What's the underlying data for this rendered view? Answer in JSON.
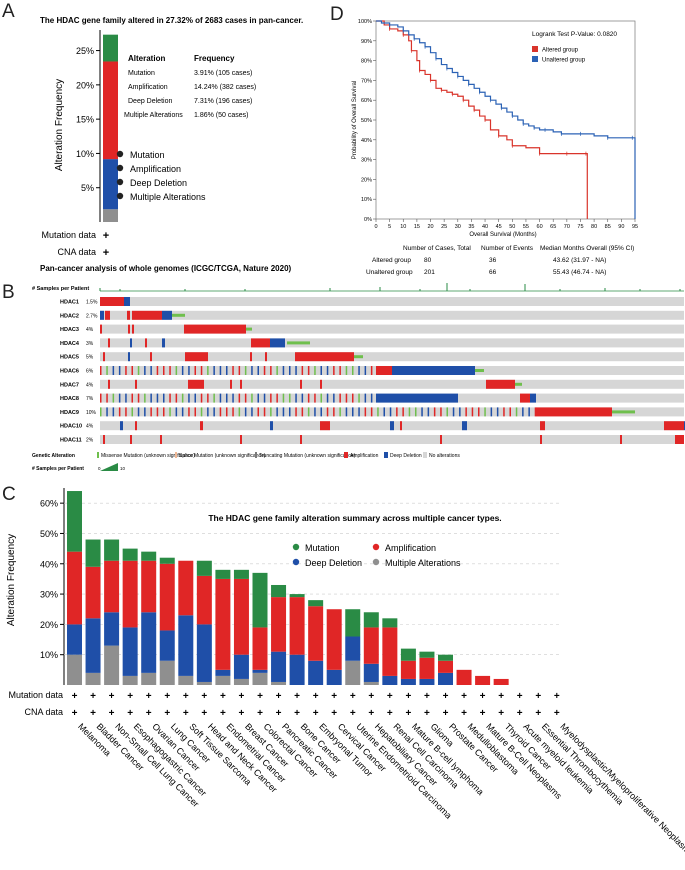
{
  "colors": {
    "mutation": "#2a8b45",
    "amplification": "#e02626",
    "deep_deletion": "#1f4fa8",
    "multiple": "#8f8f8f",
    "altered": "#d9342b",
    "unaltered": "#2b62b5",
    "splice": "#f0b895",
    "truncating": "#7a7a7a",
    "no_alteration": "#d6d6d6",
    "missense": "#6fbf4d"
  },
  "panel_labels": {
    "a": "A",
    "b": "B",
    "c": "C",
    "d": "D"
  },
  "chart_data": [
    {
      "id": "A",
      "type": "bar",
      "title": "The HDAC gene family altered in 27.32% of 2683 cases in pan-cancer.",
      "ylabel": "Alteration Frequency",
      "ylim": [
        0,
        28
      ],
      "yticks": [
        "5%",
        "10%",
        "15%",
        "20%",
        "25%"
      ],
      "ytick_values": [
        5,
        10,
        15,
        20,
        25
      ],
      "segments": [
        {
          "name": "Multiple Alterations",
          "value": 1.86
        },
        {
          "name": "Deep Deletion",
          "value": 7.31
        },
        {
          "name": "Amplification",
          "value": 14.24
        },
        {
          "name": "Mutation",
          "value": 3.91
        }
      ],
      "table_headers": [
        "Alteration",
        "Frequency"
      ],
      "table_rows": [
        [
          "Mutation",
          "3.91% (105 cases)"
        ],
        [
          "Amplification",
          "14.24% (382 cases)"
        ],
        [
          "Deep Deletion",
          "7.31% (196 cases)"
        ],
        [
          "Multiple Alterations",
          "1.86% (50 cases)"
        ]
      ],
      "legend": [
        "Mutation",
        "Amplification",
        "Deep Deletion",
        "Multiple Alterations"
      ],
      "row_labels": [
        "Mutation data",
        "CNA data"
      ],
      "plus": "+",
      "footnote": "Pan-cancer analysis of whole genomes (ICGC/TCGA, Nature 2020)"
    },
    {
      "id": "D",
      "type": "line",
      "title": "Logrank Test P-Value: 0.0820",
      "xlabel": "Overall Survival (Months)",
      "ylabel": "Probability of Overall Survival",
      "xlim": [
        0,
        95
      ],
      "ylim": [
        0,
        100
      ],
      "xticks": [
        "0",
        "5",
        "10",
        "15",
        "20",
        "25",
        "30",
        "35",
        "40",
        "45",
        "50",
        "55",
        "60",
        "65",
        "70",
        "75",
        "80",
        "85",
        "90",
        "95"
      ],
      "xtick_values": [
        0,
        5,
        10,
        15,
        20,
        25,
        30,
        35,
        40,
        45,
        50,
        55,
        60,
        65,
        70,
        75,
        80,
        85,
        90,
        95
      ],
      "yticks": [
        "0%",
        "10%",
        "20%",
        "30%",
        "40%",
        "50%",
        "60%",
        "70%",
        "80%",
        "90%",
        "100%"
      ],
      "ytick_values": [
        0,
        10,
        20,
        30,
        40,
        50,
        60,
        70,
        80,
        90,
        100
      ],
      "legend": [
        "Altered group",
        "Unaltered group"
      ],
      "series": [
        {
          "name": "Altered group",
          "x": [
            0,
            3,
            5,
            8,
            10,
            12,
            13,
            15,
            16,
            18,
            20,
            22,
            24,
            26,
            28,
            30,
            32,
            34,
            36,
            38,
            40,
            42,
            45,
            48,
            50,
            55,
            60,
            65,
            70,
            75,
            77,
            77.5
          ],
          "y": [
            100,
            98,
            96,
            95,
            93,
            90,
            85,
            80,
            75,
            73,
            70,
            66,
            65,
            64,
            63,
            62,
            60,
            57,
            55,
            52,
            50,
            45,
            42,
            40,
            37,
            36,
            33,
            33,
            33,
            33,
            33,
            0
          ]
        },
        {
          "name": "Unaltered group",
          "x": [
            0,
            2,
            5,
            8,
            10,
            12,
            14,
            16,
            18,
            20,
            22,
            24,
            26,
            28,
            30,
            32,
            34,
            36,
            38,
            40,
            42,
            44,
            46,
            48,
            50,
            52,
            54,
            56,
            58,
            60,
            62,
            65,
            68,
            70,
            75,
            80,
            85,
            90,
            94,
            95
          ],
          "y": [
            100,
            99,
            98,
            97,
            95,
            93,
            91,
            89,
            87,
            84,
            81,
            78,
            76,
            74,
            72,
            70,
            68,
            66,
            64,
            62,
            60,
            58,
            56,
            54,
            52,
            50,
            48,
            47,
            46,
            45,
            45,
            44,
            43,
            43,
            43,
            42,
            41,
            41,
            41,
            0
          ]
        }
      ],
      "table_headers": [
        "",
        "Number of Cases, Total",
        "Number of Events",
        "Median Months Overall (95% CI)"
      ],
      "table_rows": [
        [
          "Altered group",
          "80",
          "36",
          "43.62 (31.97 - NA)"
        ],
        [
          "Unaltered group",
          "201",
          "66",
          "55.43 (46.74 - NA)"
        ]
      ]
    },
    {
      "id": "B",
      "type": "heatmap",
      "samples_label": "# Samples per Patient",
      "genes": [
        "HDAC1",
        "HDAC2",
        "HDAC3",
        "HDAC4",
        "HDAC5",
        "HDAC6",
        "HDAC7",
        "HDAC8",
        "HDAC9",
        "HDAC10",
        "HDAC11"
      ],
      "percents": [
        "1.5%",
        "2.7%",
        "4%",
        "3%",
        "5%",
        "6%",
        "4%",
        "7%",
        "10%",
        "4%",
        "2%"
      ],
      "legend_title": "Genetic Alteration",
      "legend": [
        "Missense Mutation (unknown significance)",
        "Splice Mutation (unknown significance)",
        "Truncating Mutation (unknown significance)",
        "Amplification",
        "Deep Deletion",
        "No alterations"
      ],
      "samples_legend_label": "# Samples per Patient",
      "samples_range": [
        "0",
        "10"
      ]
    },
    {
      "id": "C",
      "type": "bar",
      "title": "The HDAC gene family alteration summary across multiple cancer types.",
      "ylabel": "Alteration Frequency",
      "ylim": [
        0,
        65
      ],
      "yticks": [
        "10%",
        "20%",
        "30%",
        "40%",
        "50%",
        "60%"
      ],
      "ytick_values": [
        10,
        20,
        30,
        40,
        50,
        60
      ],
      "legend": [
        "Mutation",
        "Amplification",
        "Deep Deletion",
        "Multiple Alterations"
      ],
      "row_labels": [
        "Mutation data",
        "CNA data"
      ],
      "plus": "+",
      "categories": [
        "Melanoma",
        "Bladder Cancer",
        "Non-Small Cell Lung Cancer",
        "Esophagogastric Cancer",
        "Ovarian Cancer",
        "Lung Cancer",
        "Soft Tissue Sarcoma",
        "Head and Neck Cancer",
        "Endometrial Cancer",
        "Breast Cancer",
        "Colorectal Cancer",
        "Pancreatic Cancer",
        "Bone Cancer",
        "Embryonal Tumor",
        "Cervical Cancer",
        "Uterine Endometrioid Carcinoma",
        "Hepatobiliary Cancer",
        "Renal Cell Carcinoma",
        "Mature B-cell lymphoma",
        "Glioma",
        "Prostate Cancer",
        "Medulloblastoma",
        "Mature B-Cell Neoplasms",
        "Thyroid Cancer",
        "Acute myeloid leukemia",
        "Essential Thrombocythemia",
        "Myelodysplastic/Myeloproliferative Neoplasms"
      ],
      "series": [
        {
          "name": "Multiple Alterations",
          "values": [
            10,
            4,
            13,
            3,
            4,
            8,
            3,
            1,
            3,
            2,
            4,
            1,
            0,
            0,
            0,
            8,
            1,
            0,
            0,
            0,
            0,
            0,
            0,
            0,
            0,
            0,
            0
          ]
        },
        {
          "name": "Deep Deletion",
          "values": [
            10,
            18,
            11,
            16,
            20,
            10,
            20,
            19,
            2,
            8,
            1,
            10,
            10,
            8,
            5,
            8,
            6,
            3,
            2,
            2,
            4,
            0,
            0,
            0,
            0,
            0,
            0
          ]
        },
        {
          "name": "Amplification",
          "values": [
            24,
            17,
            17,
            22,
            17,
            22,
            18,
            16,
            30,
            25,
            14,
            18,
            19,
            18,
            20,
            0,
            12,
            16,
            6,
            7,
            4,
            5,
            3,
            2,
            0,
            0,
            0
          ]
        },
        {
          "name": "Mutation",
          "values": [
            20,
            9,
            7,
            4,
            3,
            2,
            0,
            5,
            3,
            3,
            18,
            4,
            1,
            2,
            0,
            9,
            5,
            3,
            4,
            2,
            2,
            0,
            0,
            0,
            0,
            0,
            0
          ]
        }
      ]
    }
  ]
}
